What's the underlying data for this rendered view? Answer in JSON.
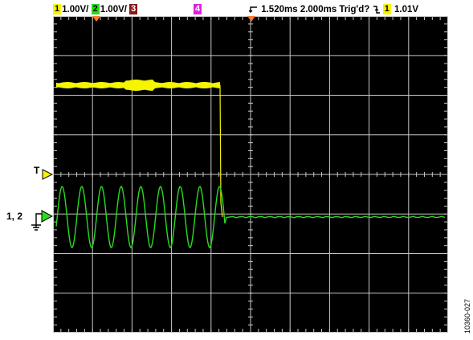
{
  "header": {
    "ch1_num": "1",
    "ch1_scale": "1.00V/",
    "ch2_num": "2",
    "ch2_scale": "1.00V/",
    "ch3_num": "3",
    "ch4_num": "4",
    "trig_pos": "1.520ms",
    "timebase": "2.000ms",
    "trig_status": "Trig'd?",
    "trig_ch_num": "1",
    "trig_level": "1.01V"
  },
  "markers": {
    "trigger_label": "T",
    "channels_label": "1, 2"
  },
  "figure_code": "10360-027",
  "colors": {
    "ch1": "#f5f500",
    "ch2": "#28dc1e",
    "ch3": "#8a1a1a",
    "ch4": "#e020e0",
    "grid": "#c8c8c8",
    "marker_orange": "#ff7a2a",
    "screen": "#000000"
  },
  "scope": {
    "divisions_x": 10,
    "divisions_y": 8
  }
}
